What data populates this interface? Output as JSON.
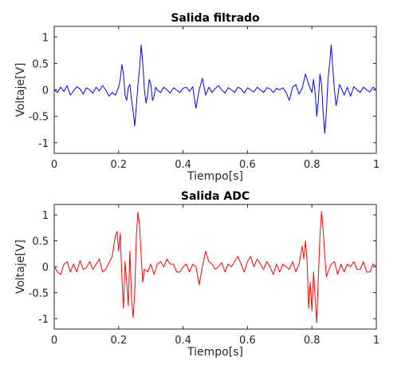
{
  "chart_data": [
    {
      "type": "line",
      "title": "Salida filtrado",
      "xlabel": "Tiempo[s]",
      "ylabel": "Voltaje[V]",
      "xlim": [
        0,
        1
      ],
      "ylim": [
        -1.2,
        1.2
      ],
      "xticks": [
        "0",
        "0.2",
        "0.4",
        "0.6",
        "0.8",
        "1"
      ],
      "yticks": [
        "1",
        "0.5",
        "0",
        "-0.5",
        "-1"
      ],
      "grid": false,
      "legend": "none",
      "series": [
        {
          "color": "#0000ff",
          "x": [
            0,
            0.01,
            0.02,
            0.03,
            0.04,
            0.05,
            0.06,
            0.07,
            0.08,
            0.09,
            0.1,
            0.11,
            0.12,
            0.13,
            0.14,
            0.15,
            0.16,
            0.17,
            0.18,
            0.19,
            0.2,
            0.205,
            0.21,
            0.215,
            0.22,
            0.225,
            0.23,
            0.235,
            0.24,
            0.245,
            0.25,
            0.255,
            0.26,
            0.265,
            0.27,
            0.275,
            0.28,
            0.285,
            0.29,
            0.295,
            0.3,
            0.305,
            0.31,
            0.315,
            0.32,
            0.33,
            0.34,
            0.35,
            0.36,
            0.37,
            0.38,
            0.39,
            0.4,
            0.41,
            0.42,
            0.43,
            0.44,
            0.45,
            0.46,
            0.47,
            0.48,
            0.49,
            0.5,
            0.51,
            0.52,
            0.53,
            0.54,
            0.55,
            0.56,
            0.57,
            0.58,
            0.59,
            0.6,
            0.61,
            0.62,
            0.63,
            0.64,
            0.65,
            0.66,
            0.67,
            0.68,
            0.69,
            0.7,
            0.71,
            0.72,
            0.73,
            0.74,
            0.75,
            0.76,
            0.77,
            0.78,
            0.79,
            0.8,
            0.805,
            0.81,
            0.815,
            0.82,
            0.825,
            0.83,
            0.835,
            0.84,
            0.845,
            0.85,
            0.855,
            0.86,
            0.865,
            0.87,
            0.875,
            0.88,
            0.885,
            0.89,
            0.9,
            0.91,
            0.92,
            0.93,
            0.94,
            0.95,
            0.96,
            0.97,
            0.98,
            0.99,
            1.0
          ],
          "y": [
            0.0,
            -0.05,
            0.05,
            -0.03,
            0.08,
            -0.1,
            -0.02,
            0.06,
            0.02,
            -0.08,
            0.04,
            0.0,
            -0.06,
            0.05,
            -0.02,
            0.08,
            0.0,
            -0.12,
            -0.05,
            -0.1,
            0.05,
            0.2,
            0.48,
            0.3,
            -0.1,
            -0.2,
            0.05,
            0.1,
            -0.2,
            -0.4,
            -0.68,
            -0.3,
            0.1,
            0.4,
            0.85,
            0.5,
            0.0,
            -0.25,
            -0.1,
            0.2,
            0.1,
            -0.2,
            -0.12,
            0.05,
            0.0,
            -0.05,
            0.05,
            0.0,
            -0.06,
            0.04,
            0.0,
            -0.05,
            0.03,
            0.05,
            -0.03,
            0.06,
            -0.35,
            0.0,
            0.22,
            -0.1,
            0.05,
            -0.05,
            0.03,
            0.08,
            0.0,
            -0.06,
            0.04,
            0.0,
            -0.05,
            0.05,
            0.02,
            -0.06,
            0.04,
            0.0,
            -0.04,
            0.05,
            0.0,
            -0.05,
            0.04,
            0.02,
            -0.05,
            0.03,
            0.0,
            0.04,
            -0.05,
            -0.2,
            0.05,
            0.1,
            -0.08,
            0.03,
            0.3,
            0.1,
            -0.05,
            0.2,
            -0.05,
            -0.5,
            -0.2,
            0.3,
            0.1,
            -0.45,
            -0.82,
            -0.4,
            0.2,
            0.5,
            0.85,
            0.4,
            0.0,
            -0.3,
            -0.15,
            0.1,
            0.05,
            -0.1,
            0.05,
            -0.12,
            0.06,
            0.0,
            -0.05,
            0.05,
            0.0,
            -0.04,
            0.05,
            0.0
          ]
        }
      ]
    },
    {
      "type": "line",
      "title": "Salida ADC",
      "xlabel": "Tiempo[s]",
      "ylabel": "Voltaje[V]",
      "xlim": [
        0,
        1
      ],
      "ylim": [
        -1.2,
        1.2
      ],
      "xticks": [
        "0",
        "0.2",
        "0.4",
        "0.6",
        "0.8",
        "1"
      ],
      "yticks": [
        "1",
        "0.5",
        "0",
        "-0.5",
        "-1"
      ],
      "grid": false,
      "legend": "none",
      "series": [
        {
          "color": "#ff0000",
          "x": [
            0,
            0.01,
            0.02,
            0.03,
            0.04,
            0.05,
            0.06,
            0.07,
            0.08,
            0.09,
            0.1,
            0.11,
            0.12,
            0.13,
            0.14,
            0.15,
            0.16,
            0.17,
            0.18,
            0.19,
            0.195,
            0.2,
            0.205,
            0.21,
            0.215,
            0.22,
            0.225,
            0.23,
            0.235,
            0.24,
            0.245,
            0.25,
            0.255,
            0.26,
            0.265,
            0.27,
            0.275,
            0.28,
            0.29,
            0.3,
            0.31,
            0.32,
            0.33,
            0.34,
            0.35,
            0.36,
            0.37,
            0.38,
            0.39,
            0.4,
            0.41,
            0.42,
            0.43,
            0.44,
            0.45,
            0.46,
            0.47,
            0.48,
            0.49,
            0.5,
            0.51,
            0.52,
            0.53,
            0.54,
            0.55,
            0.56,
            0.57,
            0.58,
            0.59,
            0.6,
            0.61,
            0.62,
            0.63,
            0.64,
            0.65,
            0.66,
            0.67,
            0.68,
            0.69,
            0.7,
            0.71,
            0.72,
            0.73,
            0.74,
            0.75,
            0.76,
            0.77,
            0.775,
            0.78,
            0.785,
            0.79,
            0.795,
            0.8,
            0.805,
            0.81,
            0.815,
            0.82,
            0.825,
            0.83,
            0.835,
            0.84,
            0.845,
            0.85,
            0.86,
            0.87,
            0.88,
            0.89,
            0.9,
            0.91,
            0.92,
            0.93,
            0.94,
            0.95,
            0.96,
            0.97,
            0.98,
            0.99,
            1.0
          ],
          "y": [
            0.0,
            -0.1,
            -0.15,
            0.05,
            0.1,
            -0.1,
            0.05,
            -0.1,
            0.12,
            -0.05,
            -0.02,
            0.1,
            -0.05,
            0.05,
            0.15,
            -0.1,
            -0.05,
            0.08,
            0.2,
            0.6,
            0.68,
            0.3,
            0.65,
            -0.2,
            -0.8,
            0.1,
            -0.3,
            -0.75,
            0.3,
            -0.6,
            -0.98,
            -0.5,
            0.6,
            1.05,
            0.8,
            0.2,
            -0.3,
            -0.05,
            -0.1,
            0.05,
            -0.15,
            0.05,
            0.1,
            0.0,
            0.15,
            0.05,
            0.05,
            -0.1,
            -0.1,
            0.0,
            0.05,
            -0.1,
            0.05,
            0.0,
            -0.35,
            0.0,
            0.3,
            0.1,
            0.05,
            -0.05,
            0.0,
            0.08,
            -0.1,
            0.05,
            0.0,
            0.1,
            0.2,
            0.05,
            -0.1,
            0.1,
            0.2,
            0.0,
            0.15,
            0.05,
            -0.05,
            0.1,
            0.0,
            -0.15,
            0.05,
            -0.1,
            0.05,
            0.0,
            -0.05,
            0.1,
            -0.1,
            0.05,
            0.4,
            0.15,
            0.5,
            0.1,
            -0.8,
            -0.3,
            -0.85,
            -0.1,
            -0.6,
            -1.08,
            -0.2,
            0.6,
            1.07,
            0.7,
            0.2,
            -0.2,
            -0.1,
            0.05,
            0.1,
            -0.15,
            0.05,
            -0.1,
            0.05,
            0.0,
            0.1,
            -0.05,
            -0.05,
            0.1,
            -0.1,
            -0.1,
            0.05,
            0.0
          ]
        }
      ]
    }
  ]
}
